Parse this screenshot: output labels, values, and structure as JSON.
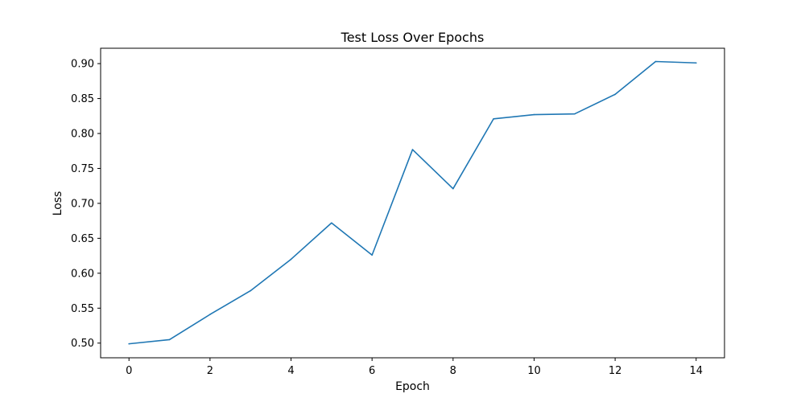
{
  "chart_data": {
    "type": "line",
    "title": "Test Loss Over Epochs",
    "xlabel": "Epoch",
    "ylabel": "Loss",
    "xlim": [
      -0.7,
      14.7
    ],
    "ylim": [
      0.479,
      0.922
    ],
    "xticks": [
      0,
      2,
      4,
      6,
      8,
      10,
      12,
      14
    ],
    "xtick_labels": [
      "0",
      "2",
      "4",
      "6",
      "8",
      "10",
      "12",
      "14"
    ],
    "yticks": [
      0.5,
      0.55,
      0.6,
      0.65,
      0.7,
      0.75,
      0.8,
      0.85,
      0.9
    ],
    "ytick_labels": [
      "0.50",
      "0.55",
      "0.60",
      "0.65",
      "0.70",
      "0.75",
      "0.80",
      "0.85",
      "0.90"
    ],
    "grid": false,
    "series": [
      {
        "name": "Test Loss",
        "color": "#1f77b4",
        "x": [
          0,
          1,
          2,
          3,
          4,
          5,
          6,
          7,
          8,
          9,
          10,
          11,
          12,
          13,
          14
        ],
        "values": [
          0.499,
          0.505,
          0.541,
          0.575,
          0.62,
          0.672,
          0.626,
          0.777,
          0.721,
          0.821,
          0.827,
          0.828,
          0.856,
          0.903,
          0.901
        ]
      }
    ]
  }
}
